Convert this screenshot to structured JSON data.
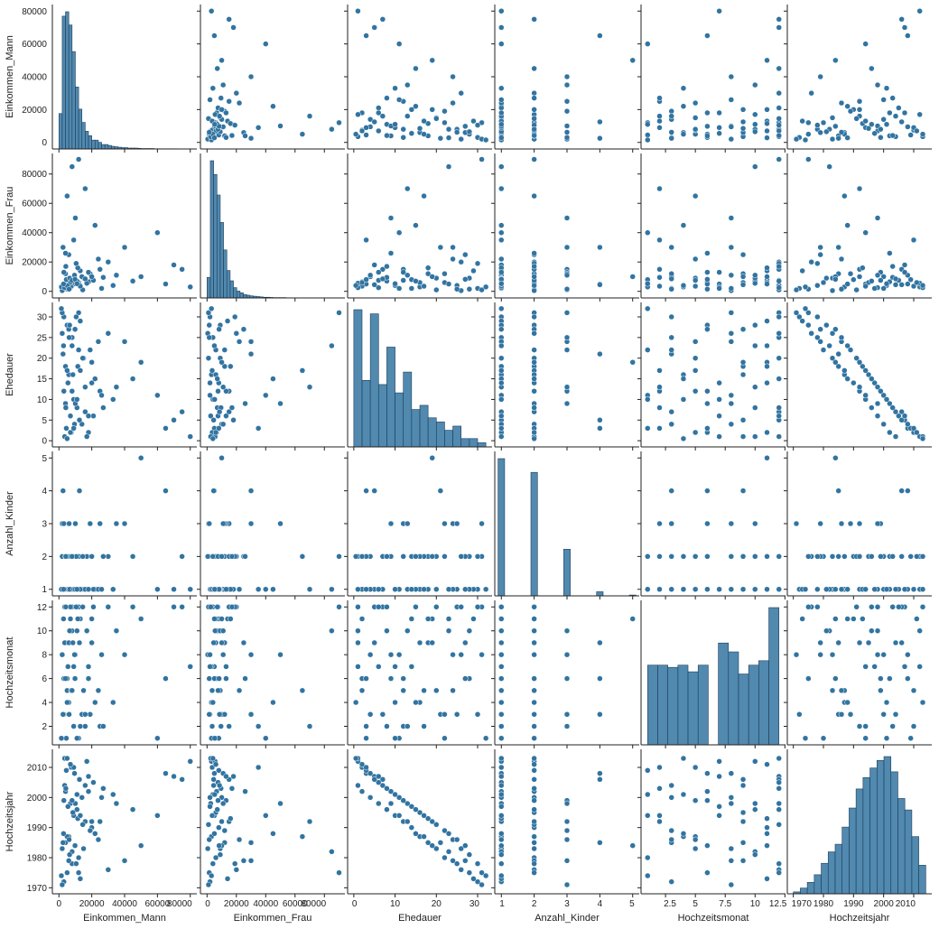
{
  "chart_data": {
    "type": "pairplot",
    "variables": [
      "Einkommen_Mann",
      "Einkommen_Frau",
      "Ehedauer",
      "Anzahl_Kinder",
      "Hochzeitsmonat",
      "Hochzeitsjahr"
    ],
    "axes": {
      "Einkommen_Mann": {
        "lim": [
          -4000,
          84000
        ],
        "ticks": [
          0,
          20000,
          40000,
          60000,
          80000
        ],
        "yticks": [
          0,
          20000,
          40000,
          60000,
          80000
        ]
      },
      "Einkommen_Frau": {
        "lim": [
          -4500,
          94000
        ],
        "ticks": [
          0,
          20000,
          40000,
          60000,
          80000
        ],
        "yticks": [
          0,
          20000,
          40000,
          60000,
          80000
        ]
      },
      "Ehedauer": {
        "lim": [
          -1.5,
          33.5
        ],
        "ticks": [
          0,
          10,
          20,
          30
        ],
        "yticks": [
          0,
          5,
          10,
          15,
          20,
          25,
          30
        ]
      },
      "Anzahl_Kinder": {
        "lim": [
          0.8,
          5.2
        ],
        "ticks": [
          1,
          2,
          3,
          4,
          5
        ],
        "yticks": [
          1,
          2,
          3,
          4,
          5
        ]
      },
      "Hochzeitsmonat": {
        "lim": [
          0.45,
          12.55
        ],
        "ticks": [
          2.5,
          5.0,
          7.5,
          10.0,
          12.5
        ],
        "yticks": [
          2,
          4,
          6,
          8,
          10,
          12
        ]
      },
      "Hochzeitsjahr": {
        "lim": [
          1968,
          2016
        ],
        "ticks": [
          1970,
          1980,
          1990,
          2000,
          2010
        ],
        "yticks": [
          1970,
          1980,
          1990,
          2000,
          2010
        ]
      }
    },
    "histograms": {
      "Einkommen_Mann": {
        "range": [
          0,
          80000
        ],
        "counts": [
          8,
          30,
          31,
          28,
          22,
          14,
          9,
          6,
          4,
          3,
          2,
          2,
          1.5,
          1,
          1,
          0.8,
          0.6,
          0.5,
          0.4,
          0.3,
          0.3,
          0.2,
          0.2,
          0.2,
          0.15,
          0.1,
          0.1,
          0.1,
          0.1,
          0.05,
          0.05,
          0.05,
          0.05,
          0.05,
          0.05,
          0.05,
          0.03,
          0.03,
          0.03,
          0.03
        ]
      },
      "Einkommen_Frau": {
        "range": [
          0,
          90000
        ],
        "counts": [
          6,
          40,
          36,
          30,
          22,
          14,
          8,
          5,
          3,
          2,
          1.5,
          1,
          0.8,
          0.6,
          0.5,
          0.4,
          0.3,
          0.2,
          0.2,
          0.15,
          0.1,
          0.1,
          0.1,
          0.1,
          0.05,
          0.05,
          0.05,
          0.05,
          0.05,
          0.05,
          0.03,
          0.03,
          0.03,
          0.03,
          0.03,
          0.03,
          0.02,
          0.02,
          0.02,
          0.02
        ]
      },
      "Ehedauer": {
        "range": [
          0,
          32
        ],
        "counts": [
          16.5,
          8,
          16,
          7.5,
          12,
          6.5,
          9,
          4.5,
          5,
          3.5,
          3,
          2,
          2.5,
          1,
          1,
          0.5
        ]
      },
      "Anzahl_Kinder": {
        "range": [
          0.8,
          5.2
        ],
        "bars": [
          {
            "x": 1,
            "h": 5
          },
          {
            "x": 2,
            "h": 4.5
          },
          {
            "x": 3,
            "h": 1.7
          },
          {
            "x": 4,
            "h": 0.15
          },
          {
            "x": 5,
            "h": 0.03
          }
        ]
      },
      "Hochzeitsmonat": {
        "range": [
          1,
          12
        ],
        "counts": [
          3.6,
          3.6,
          3.5,
          3.6,
          3.3,
          3.6,
          0,
          4.6,
          4.2,
          3.2,
          3.6,
          3.8,
          6.2
        ]
      },
      "Hochzeitsjahr": {
        "range": [
          1970,
          2014
        ],
        "counts": [
          0.1,
          0.3,
          0.6,
          1,
          1.6,
          2.2,
          2.6,
          3.5,
          4.5,
          5.5,
          6.1,
          6.6,
          7,
          7.2,
          6.4,
          5,
          4.4,
          3,
          1.5
        ]
      }
    },
    "records": [
      [
        3000,
        2000,
        30,
        1,
        3,
        1972
      ],
      [
        5000,
        1500,
        28,
        2,
        6,
        1975
      ],
      [
        8000,
        4000,
        25,
        1,
        12,
        1978
      ],
      [
        12000,
        6000,
        22,
        2,
        1,
        1980
      ],
      [
        2000,
        1000,
        31,
        3,
        8,
        1971
      ],
      [
        15000,
        9000,
        20,
        1,
        5,
        1983
      ],
      [
        4000,
        12000,
        18,
        2,
        9,
        1985
      ],
      [
        6000,
        3000,
        16,
        1,
        4,
        1987
      ],
      [
        20000,
        8000,
        14,
        2,
        11,
        1990
      ],
      [
        25000,
        15000,
        12,
        3,
        2,
        1992
      ],
      [
        9000,
        5000,
        10,
        1,
        7,
        1994
      ],
      [
        11000,
        7000,
        8,
        2,
        10,
        1996
      ],
      [
        7000,
        2500,
        6,
        1,
        12,
        1998
      ],
      [
        14000,
        10000,
        4,
        2,
        3,
        2000
      ],
      [
        18000,
        6500,
        2,
        1,
        6,
        2002
      ],
      [
        3500,
        4500,
        1,
        1,
        9,
        2004
      ],
      [
        30000,
        20000,
        26,
        2,
        12,
        1976
      ],
      [
        40000,
        30000,
        24,
        3,
        8,
        1979
      ],
      [
        50000,
        10000,
        19,
        5,
        11,
        1984
      ],
      [
        60000,
        40000,
        11,
        1,
        1,
        1994
      ],
      [
        65000,
        5000,
        3,
        4,
        6,
        2008
      ],
      [
        70000,
        18000,
        5,
        1,
        12,
        2007
      ],
      [
        80000,
        3000,
        1,
        1,
        7,
        2012
      ],
      [
        75000,
        15000,
        7,
        2,
        12,
        2006
      ],
      [
        22000,
        45000,
        15,
        1,
        4,
        1988
      ],
      [
        5000,
        65000,
        17,
        2,
        5,
        1987
      ],
      [
        8000,
        85000,
        23,
        1,
        10,
        1982
      ],
      [
        12000,
        90000,
        31,
        2,
        12,
        1975
      ],
      [
        16000,
        70000,
        13,
        1,
        2,
        1992
      ],
      [
        10000,
        50000,
        9,
        3,
        8,
        1998
      ],
      [
        2500,
        30000,
        21,
        4,
        3,
        1985
      ],
      [
        6000,
        25000,
        27,
        2,
        9,
        1979
      ],
      [
        13000,
        14000,
        29,
        1,
        11,
        1973
      ],
      [
        4500,
        8000,
        3,
        2,
        1,
        2009
      ],
      [
        7500,
        3500,
        2,
        1,
        5,
        2010
      ],
      [
        9500,
        11000,
        4,
        1,
        8,
        2008
      ],
      [
        17000,
        5500,
        1,
        2,
        10,
        2012
      ],
      [
        21000,
        7500,
        6,
        1,
        12,
        2005
      ],
      [
        27000,
        9500,
        8,
        2,
        2,
        2003
      ],
      [
        33000,
        4000,
        10,
        1,
        4,
        2001
      ],
      [
        3000,
        13000,
        12,
        3,
        6,
        1999
      ],
      [
        5500,
        2000,
        14,
        1,
        7,
        1997
      ],
      [
        8500,
        6000,
        16,
        2,
        9,
        1995
      ],
      [
        11500,
        16000,
        18,
        1,
        11,
        1993
      ],
      [
        14500,
        1000,
        20,
        2,
        12,
        1991
      ],
      [
        19000,
        12000,
        22,
        3,
        3,
        1989
      ],
      [
        24000,
        22000,
        24,
        1,
        5,
        1986
      ],
      [
        2000,
        500,
        26,
        2,
        8,
        1983
      ],
      [
        6500,
        9000,
        28,
        1,
        10,
        1981
      ],
      [
        10500,
        19000,
        30,
        2,
        12,
        1978
      ],
      [
        1500,
        3000,
        32,
        1,
        1,
        1974
      ],
      [
        12500,
        4500,
        5,
        4,
        9,
        2006
      ],
      [
        16000,
        8500,
        7,
        1,
        3,
        2004
      ],
      [
        4000,
        26000,
        9,
        2,
        6,
        2002
      ],
      [
        26000,
        2000,
        11,
        1,
        8,
        2000
      ],
      [
        35000,
        11000,
        13,
        3,
        10,
        1998
      ],
      [
        45000,
        7000,
        15,
        2,
        12,
        1996
      ],
      [
        9000,
        35000,
        3,
        1,
        2,
        2010
      ],
      [
        7000,
        6000,
        2,
        2,
        11,
        2011
      ],
      [
        3500,
        2500,
        1,
        1,
        12,
        2013
      ],
      [
        5000,
        4000,
        0.5,
        2,
        4,
        2013
      ],
      [
        18000,
        13000,
        6,
        1,
        7,
        2007
      ],
      [
        8000,
        7500,
        12,
        2,
        5,
        1999
      ],
      [
        13000,
        3500,
        17,
        1,
        2,
        1994
      ],
      [
        20000,
        10000,
        19,
        2,
        9,
        1992
      ],
      [
        2800,
        5000,
        23,
        1,
        11,
        1988
      ],
      [
        6200,
        1500,
        25,
        3,
        3,
        1986
      ],
      [
        9800,
        8200,
        27,
        1,
        6,
        1984
      ],
      [
        4200,
        17000,
        8,
        2,
        12,
        2003
      ],
      [
        11000,
        5200,
        10,
        1,
        1,
        2001
      ]
    ]
  }
}
